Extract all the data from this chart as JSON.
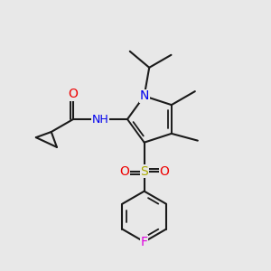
{
  "background_color": "#e8e8e8",
  "bond_color": "#1a1a1a",
  "atom_colors": {
    "N": "#0000ee",
    "O": "#ee0000",
    "S": "#aaaa00",
    "F": "#dd00dd",
    "H": "#1a1a1a",
    "C": "#1a1a1a"
  },
  "font_size": 9.5,
  "white_bg": "#e8e8e8"
}
